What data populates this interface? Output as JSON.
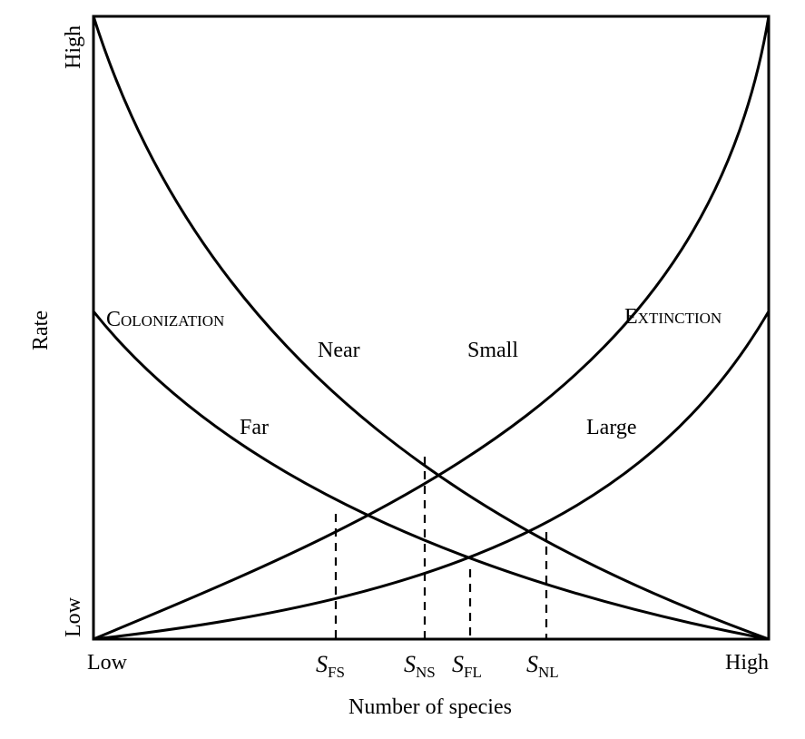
{
  "axes": {
    "x_label": "Number of species",
    "y_label": "Rate",
    "x_low": "Low",
    "x_high": "High",
    "y_low": "Low",
    "y_high": "High"
  },
  "curve_groups": {
    "colonization": {
      "first": "C",
      "rest": "OLONIZATION"
    },
    "extinction": {
      "first": "E",
      "rest": "XTINCTION"
    }
  },
  "curves": {
    "near": "Near",
    "far": "Far",
    "small": "Small",
    "large": "Large"
  },
  "equilibria": [
    {
      "id": "fs",
      "main": "S",
      "sub": "FS"
    },
    {
      "id": "ns",
      "main": "S",
      "sub": "NS"
    },
    {
      "id": "fl",
      "main": "S",
      "sub": "FL"
    },
    {
      "id": "nl",
      "main": "S",
      "sub": "NL"
    }
  ]
}
